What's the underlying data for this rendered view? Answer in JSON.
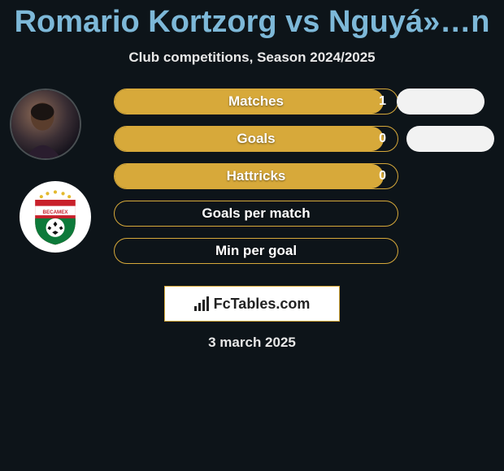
{
  "title": "Romario Kortzorg vs Nguyá»…n",
  "subtitle": "Club competitions, Season 2024/2025",
  "date": "3 march 2025",
  "colors": {
    "bg": "#0d1419",
    "title": "#7db8d8",
    "accent": "#d7a93a",
    "text": "#e8e8e8",
    "pill": "#f2f2f2",
    "logo_box_bg": "#ffffff",
    "logo_text": "#222222"
  },
  "players": {
    "p1": {
      "avatar_label": "Romario Kortzorg photo"
    },
    "p2": {
      "avatar_label": "Becamex Binh Duong FC crest"
    }
  },
  "stats": [
    {
      "key": "matches",
      "label": "Matches",
      "value": "1",
      "fill_pct": 95,
      "show_pill": true
    },
    {
      "key": "goals",
      "label": "Goals",
      "value": "0",
      "fill_pct": 95,
      "show_pill": true
    },
    {
      "key": "hattricks",
      "label": "Hattricks",
      "value": "0",
      "fill_pct": 95,
      "show_pill": false
    },
    {
      "key": "gpm",
      "label": "Goals per match",
      "value": "",
      "fill_pct": 0,
      "show_pill": false
    },
    {
      "key": "mpg",
      "label": "Min per goal",
      "value": "",
      "fill_pct": 0,
      "show_pill": false
    }
  ],
  "logo_text": "FcTables.com"
}
